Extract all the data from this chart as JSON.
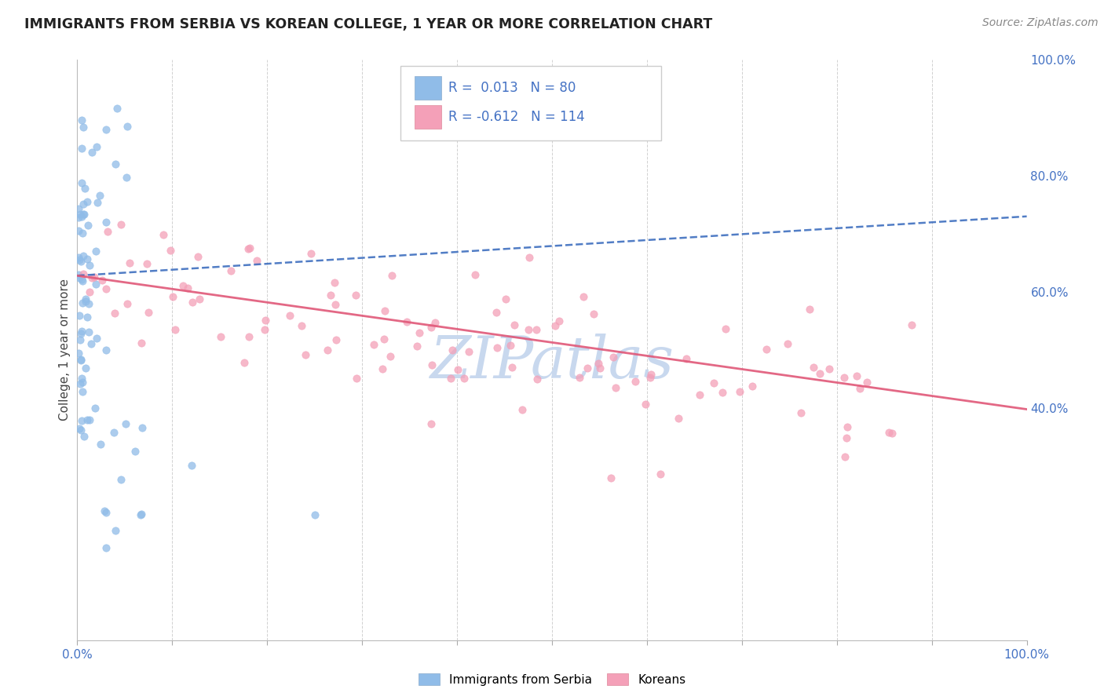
{
  "title": "IMMIGRANTS FROM SERBIA VS KOREAN COLLEGE, 1 YEAR OR MORE CORRELATION CHART",
  "source": "Source: ZipAtlas.com",
  "ylabel": "College, 1 year or more",
  "serbia_R": 0.013,
  "serbia_N": 80,
  "korean_R": -0.612,
  "korean_N": 114,
  "serbia_label": "Immigrants from Serbia",
  "korean_label": "Koreans",
  "serbia_color": "#90bce8",
  "korean_color": "#f4a0b8",
  "serbia_line_color": "#3366bb",
  "korean_line_color": "#e05878",
  "grid_color": "#cccccc",
  "background_color": "#ffffff",
  "title_color": "#222222",
  "source_color": "#888888",
  "axis_label_color": "#4472c4",
  "watermark_color": "#c8d8ee",
  "serbia_line_start_y": 0.628,
  "serbia_line_end_y": 0.73,
  "korean_line_start_y": 0.628,
  "korean_line_end_y": 0.398,
  "xlim": [
    0.0,
    1.0
  ],
  "ylim": [
    0.0,
    1.0
  ],
  "ytick_positions": [
    0.4,
    0.6,
    0.8,
    1.0
  ],
  "ytick_labels": [
    "40.0%",
    "60.0%",
    "80.0%",
    "100.0%"
  ],
  "xtick_positions": [
    0.0,
    0.1,
    0.2,
    0.3,
    0.4,
    0.5,
    0.6,
    0.7,
    0.8,
    0.9,
    1.0
  ],
  "xtick_labels": [
    "0.0%",
    "",
    "",
    "",
    "",
    "",
    "",
    "",
    "",
    "",
    "100.0%"
  ]
}
